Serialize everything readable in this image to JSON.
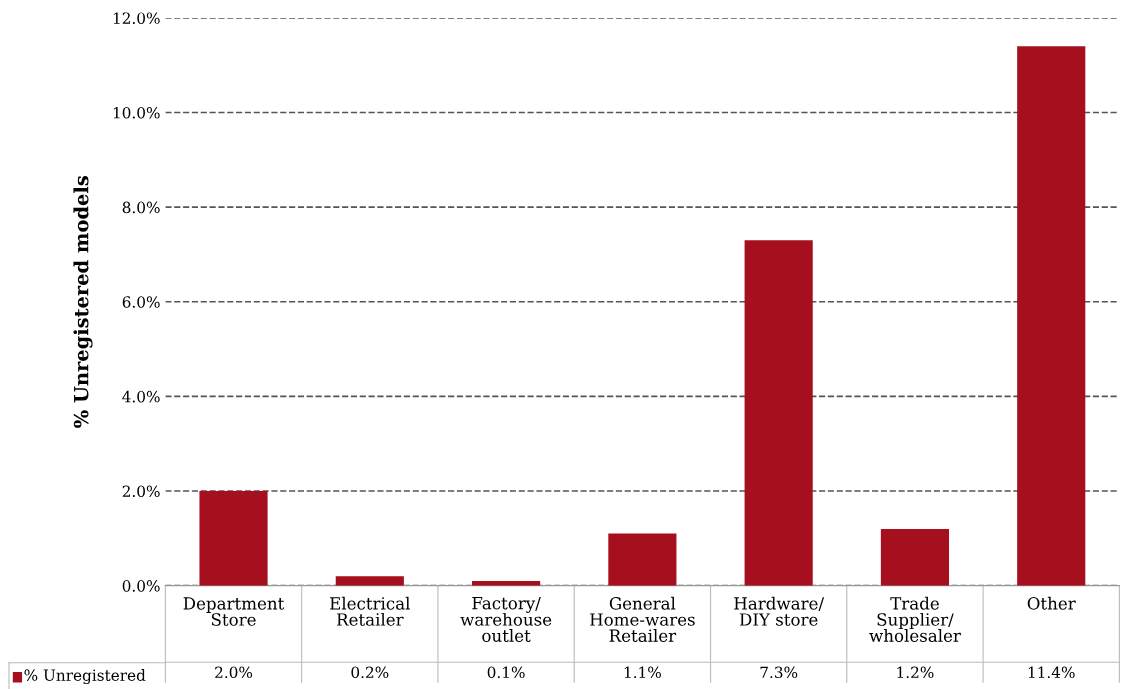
{
  "chart_data": {
    "type": "bar",
    "ylabel": "% Unregistered models",
    "categories": [
      "Department\nStore",
      "Electrical\nRetailer",
      "Factory/\nwarehouse\noutlet",
      "General\nHome-wares\nRetailer",
      "Hardware/\nDIY store",
      "Trade\nSupplier/\nwholesaler",
      "Other"
    ],
    "series": [
      {
        "name": "% Unregistered",
        "color": "#a50f1e",
        "values": [
          2.0,
          0.2,
          0.1,
          1.1,
          7.3,
          1.2,
          11.4
        ]
      }
    ],
    "ylim": [
      0,
      12
    ],
    "yticks": [
      {
        "value": 0,
        "label": "0.0%"
      },
      {
        "value": 2,
        "label": "2.0%"
      },
      {
        "value": 4,
        "label": "4.0%"
      },
      {
        "value": 6,
        "label": "6.0%"
      },
      {
        "value": 8,
        "label": "8.0%"
      },
      {
        "value": 10,
        "label": "10.0%"
      },
      {
        "value": 12,
        "label": "12.0%"
      }
    ],
    "grid": "y",
    "line_style": "dashed",
    "legend": "bottom left",
    "value_labels": [
      "2.0%",
      "0.2%",
      "0.1%",
      "1.1%",
      "7.3%",
      "1.2%",
      "11.4%"
    ]
  }
}
